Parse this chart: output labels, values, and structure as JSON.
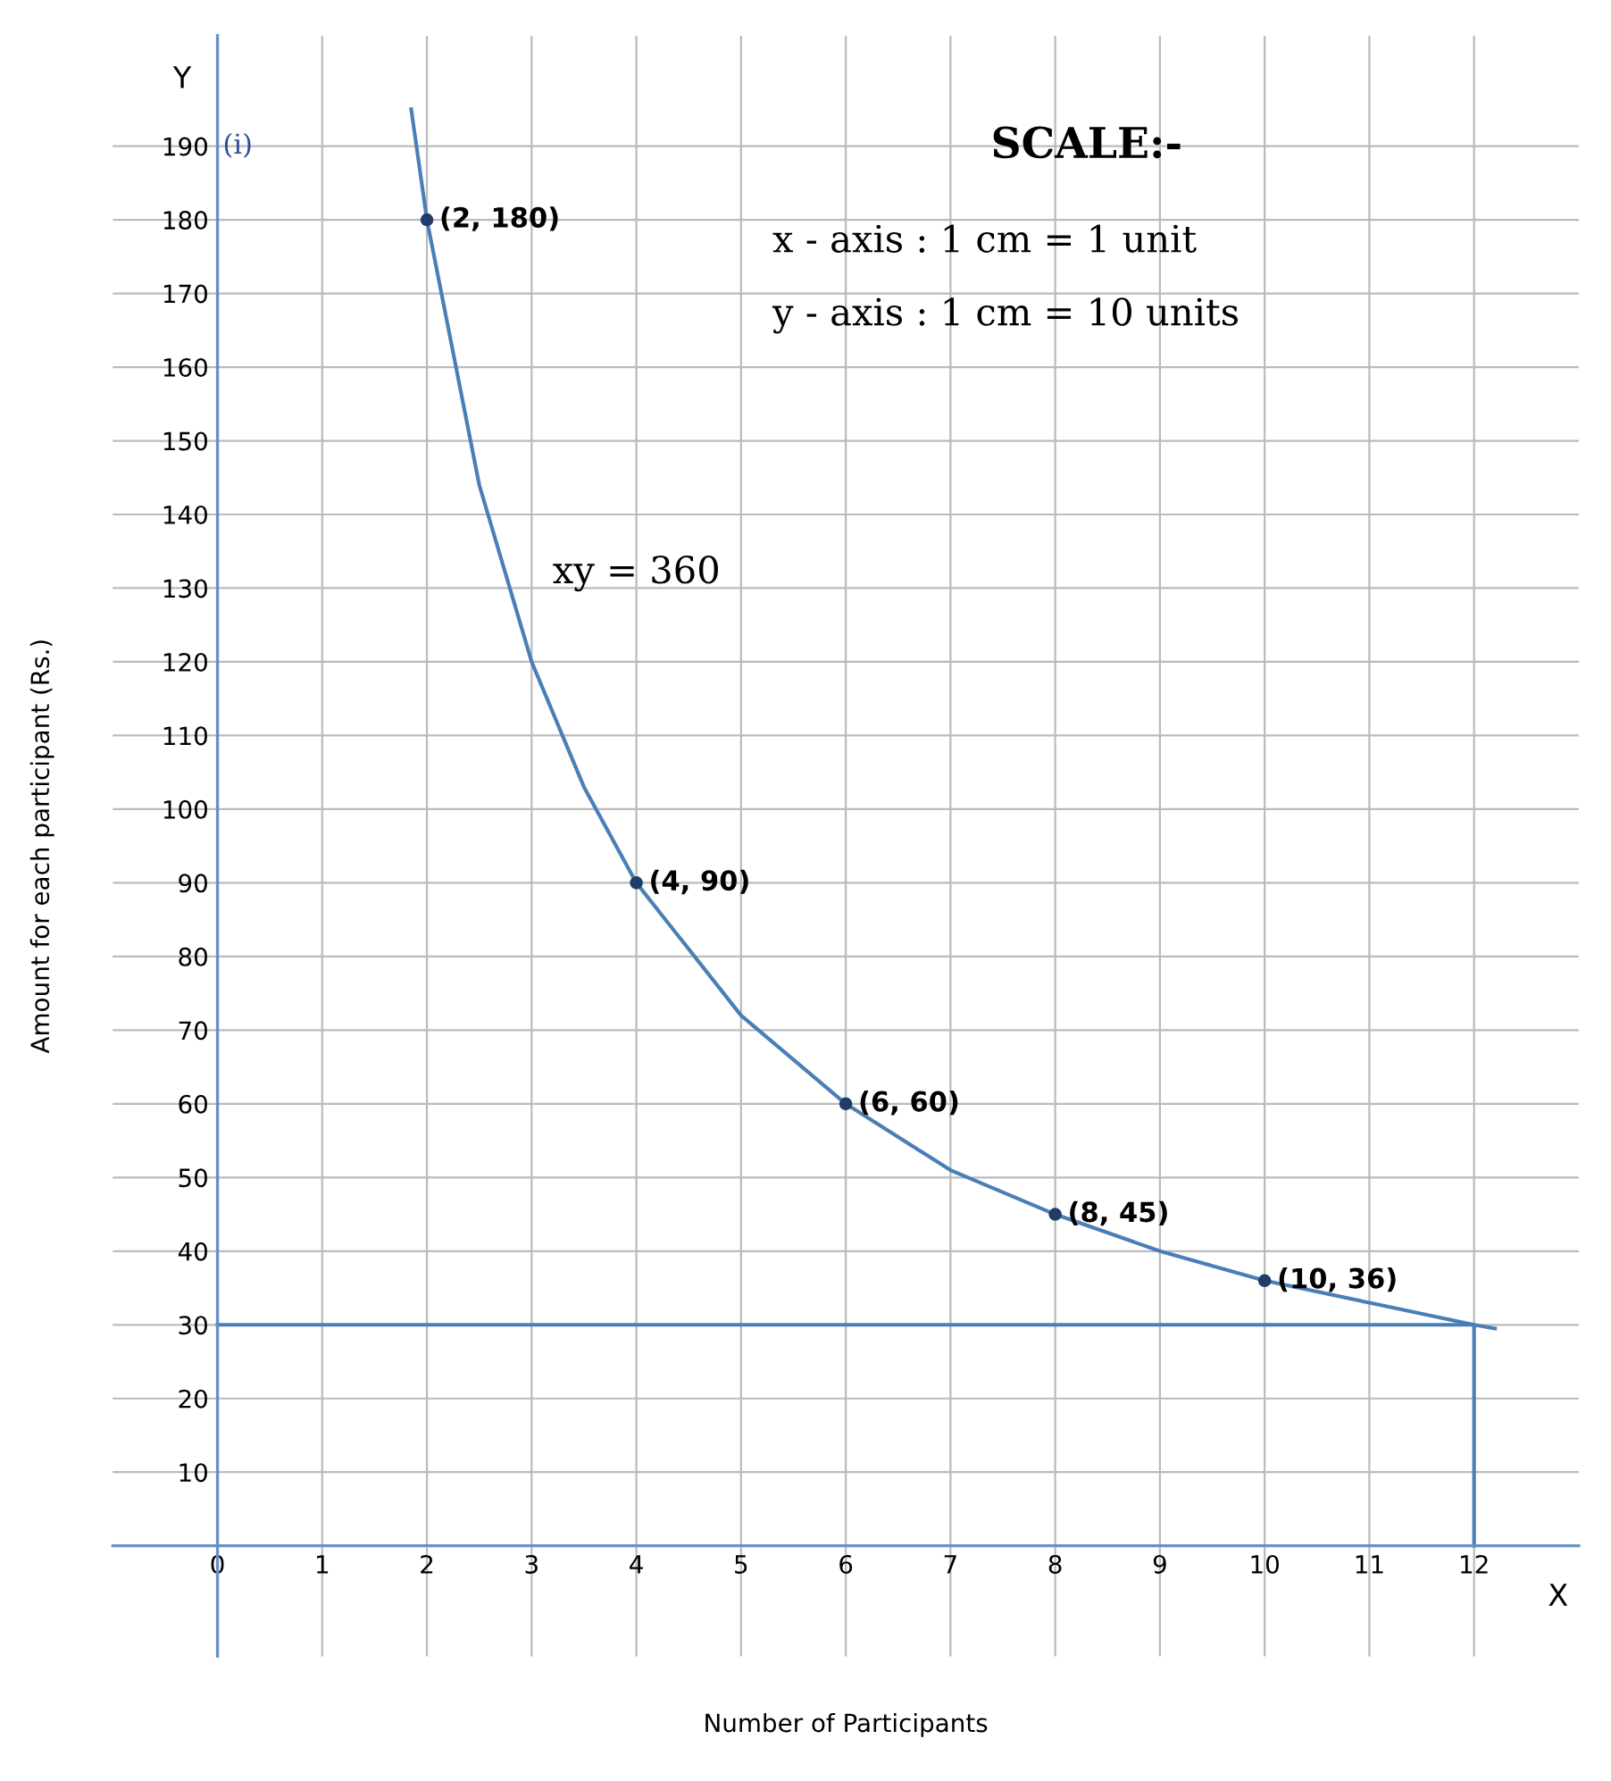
{
  "chart_data": {
    "type": "line",
    "xlabel": "Number of Participants",
    "ylabel": "Amount for each participant (Rs.)",
    "xlim": [
      -1,
      13
    ],
    "ylim": [
      -15,
      205
    ],
    "xticks": [
      0,
      1,
      2,
      3,
      4,
      5,
      6,
      7,
      8,
      9,
      10,
      11,
      12
    ],
    "yticks": [
      10,
      20,
      30,
      40,
      50,
      60,
      70,
      80,
      90,
      100,
      110,
      120,
      130,
      140,
      150,
      160,
      170,
      180,
      190
    ],
    "grid": true,
    "series": [
      {
        "color": "#4a7fb5",
        "marker": "none",
        "x": [
          1.85,
          2,
          2.5,
          3,
          3.5,
          4,
          5,
          6,
          7,
          8,
          9,
          10,
          11,
          12,
          12.2
        ],
        "values": [
          195,
          180,
          144,
          120,
          103,
          90,
          72,
          60,
          51,
          45,
          40,
          36,
          33,
          30,
          29.5
        ]
      },
      {
        "color": "#4a7fb5",
        "marker": "none",
        "x": [
          0,
          12,
          12
        ],
        "values": [
          30,
          30,
          0
        ]
      },
      {
        "type": "scatter",
        "color": "#1f3d66",
        "marker": "circle",
        "x": [
          2,
          4,
          6,
          8,
          10
        ],
        "values": [
          180,
          90,
          60,
          45,
          36
        ],
        "value_labels": [
          "(2, 180)",
          "(4, 90)",
          "(6, 60)",
          "(8, 45)",
          "(10, 36)"
        ]
      }
    ],
    "annotations": [
      "X",
      "Y",
      "(i)",
      "SCALE:-",
      "x - axis : 1 cm = 1 unit",
      "y - axis : 1 cm = 10 units",
      "xy = 360"
    ]
  }
}
